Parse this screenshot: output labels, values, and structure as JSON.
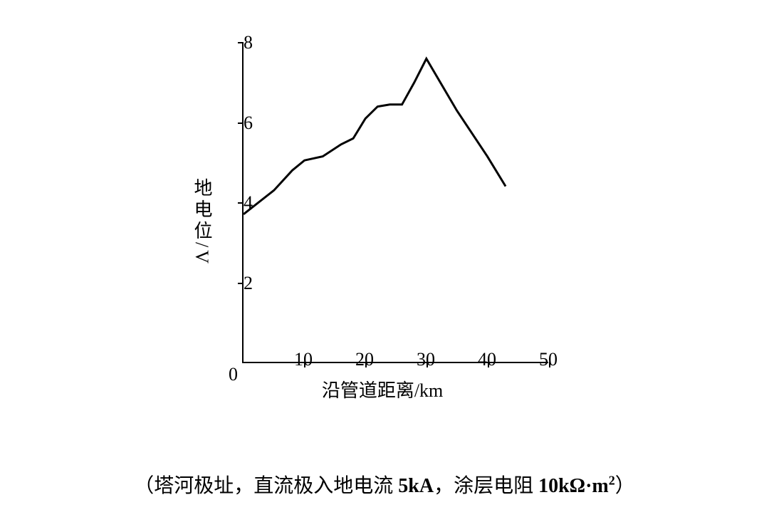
{
  "chart": {
    "type": "line",
    "x_values": [
      0,
      5,
      8,
      10,
      13,
      16,
      18,
      20,
      22,
      24,
      26,
      28,
      30,
      35,
      40,
      43
    ],
    "y_values": [
      3.7,
      4.3,
      4.8,
      5.05,
      5.15,
      5.45,
      5.6,
      6.1,
      6.4,
      6.45,
      6.45,
      7.0,
      7.6,
      6.3,
      5.15,
      4.4
    ],
    "line_color": "#000000",
    "line_width": 3,
    "background_color": "#ffffff",
    "axis_color": "#000000",
    "axis_width": 2.5,
    "xlim": [
      0,
      50
    ],
    "ylim": [
      0,
      8
    ],
    "xtick_values": [
      0,
      10,
      20,
      30,
      40,
      50
    ],
    "xtick_labels": [
      "0",
      "10",
      "20",
      "30",
      "40",
      "50"
    ],
    "ytick_values": [
      0,
      2,
      4,
      6,
      8
    ],
    "ytick_labels": [
      "0",
      "2",
      "4",
      "6",
      "8"
    ],
    "tick_fontsize": 26,
    "label_fontsize": 26,
    "x_axis_label": "沿管道距离",
    "x_axis_unit": "/km",
    "y_axis_label": "地电位",
    "y_axis_unit": "/V"
  },
  "caption": {
    "prefix": "（塔河极址，直流极入地电流 ",
    "val1": "5kA",
    "mid": "，涂层电阻 ",
    "val2": "10kΩ·m",
    "sup": "2",
    "suffix": "）"
  }
}
